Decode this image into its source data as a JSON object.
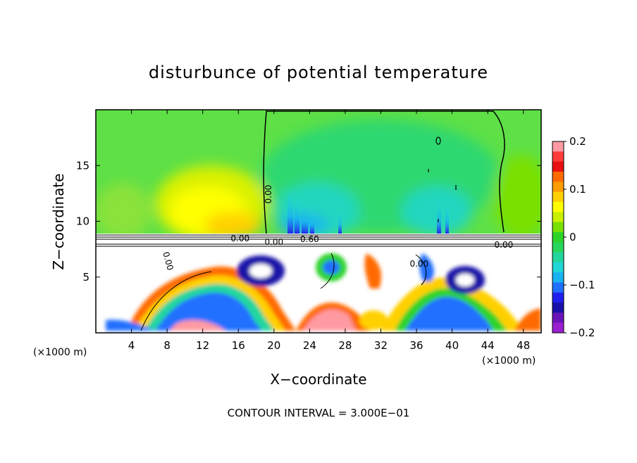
{
  "chart_data": {
    "type": "heatmap",
    "title": "disturbunce of potential temperature",
    "xlabel": "X−coordinate",
    "ylabel": "Z−coordinate",
    "x_unit_left": "(×1000 m)",
    "x_unit_right": "(×1000 m)",
    "xlim": [
      0,
      50
    ],
    "ylim": [
      0,
      20
    ],
    "x_ticks": [
      "4",
      "8",
      "12",
      "16",
      "20",
      "24",
      "28",
      "32",
      "36",
      "40",
      "44",
      "48"
    ],
    "y_ticks": [
      "5",
      "10",
      "15"
    ],
    "colorbar": {
      "range": [
        -0.2,
        0.2
      ],
      "tick_labels": [
        "0.2",
        "0.1",
        "0",
        "−0.1",
        "−0.2"
      ],
      "colors": [
        "#ff9aa2",
        "#ff3b3b",
        "#e81010",
        "#ff6a00",
        "#ff9c00",
        "#ffd000",
        "#ffff00",
        "#c8f000",
        "#7ae000",
        "#2ed32a",
        "#27d65a",
        "#22d69e",
        "#20d6d6",
        "#1ab2f0",
        "#2070ff",
        "#2020ee",
        "#1a12a8",
        "#6a15b8",
        "#9a1fd0"
      ]
    },
    "contour_labels": [
      "0.00",
      "0.00",
      "0.60",
      "0.00",
      "0.00",
      "0.00",
      "0.00"
    ],
    "footer": "CONTOUR INTERVAL = 3.000E−01"
  }
}
